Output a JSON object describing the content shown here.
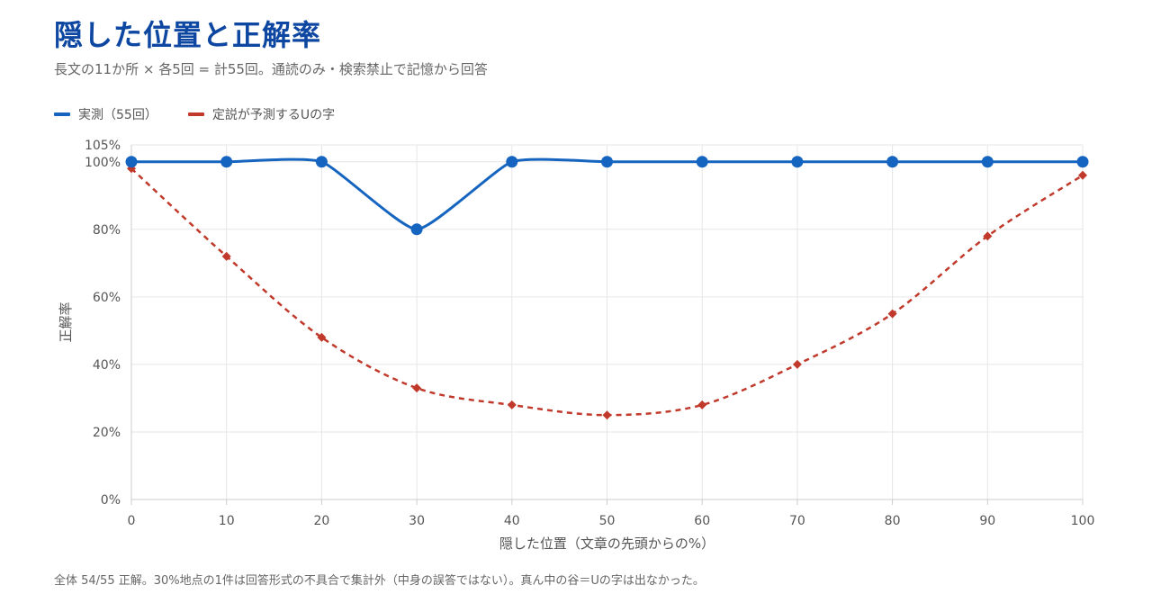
{
  "title": "隠した位置と正解率",
  "subtitle": "長文の11か所 × 各5回 = 計55回。通読のみ・検索禁止で記憶から回答",
  "footnote": "全体 54/55 正解。30%地点の1件は回答形式の不具合で集計外（中身の誤答ではない）。真ん中の谷＝Uの字は出なかった。",
  "colors": {
    "actual": "#1565c0",
    "predicted": "#c0392b",
    "grid": "#e6e6e6",
    "axis": "#cccccc",
    "title": "#0d47a1"
  },
  "chart_data": {
    "type": "line",
    "x": [
      0,
      10,
      20,
      30,
      40,
      50,
      60,
      70,
      80,
      90,
      100
    ],
    "xticks": [
      "0",
      "10",
      "20",
      "30",
      "40",
      "50",
      "60",
      "70",
      "80",
      "90",
      "100"
    ],
    "yticks": [
      "0%",
      "20%",
      "40%",
      "60%",
      "80%",
      "100%",
      "105%"
    ],
    "ytick_values": [
      0,
      20,
      40,
      60,
      80,
      100,
      105
    ],
    "series": [
      {
        "name": "実測（55回）",
        "style": "solid",
        "marker": "circle",
        "values": [
          100,
          100,
          100,
          80,
          100,
          100,
          100,
          100,
          100,
          100,
          100
        ]
      },
      {
        "name": "定説が予測するUの字",
        "style": "dashed",
        "marker": "diamond",
        "values": [
          98,
          72,
          48,
          33,
          28,
          25,
          28,
          40,
          55,
          78,
          96
        ]
      }
    ],
    "xlabel": "隠した位置（文章の先頭からの%）",
    "ylabel": "正解率",
    "xlim": [
      0,
      100
    ],
    "ylim": [
      0,
      105
    ],
    "grid": true,
    "legend": "top-left"
  }
}
